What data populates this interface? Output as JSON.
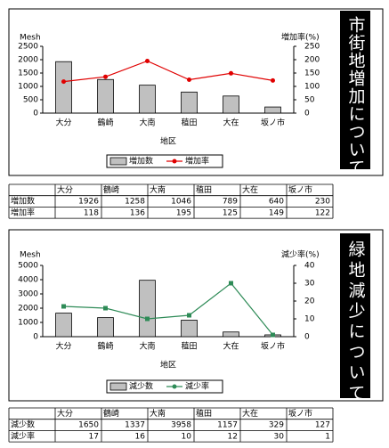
{
  "chart_data": [
    {
      "type": "bar",
      "title": "市街地増加について",
      "y_label": "Mesh",
      "y2_label": "増加率(%)",
      "x_label": "地区",
      "categories": [
        "大分",
        "鶴崎",
        "大南",
        "稙田",
        "大在",
        "坂ノ市"
      ],
      "series": [
        {
          "name": "増加数",
          "color": "#c0c0c0",
          "values": [
            1926,
            1258,
            1046,
            789,
            640,
            230
          ]
        },
        {
          "name": "増加率",
          "color": "#e00000",
          "type": "line",
          "marker": "circle",
          "axis": "y2",
          "values": [
            118,
            136,
            195,
            125,
            149,
            122
          ]
        }
      ],
      "ylim": [
        0,
        2500
      ],
      "yticks": [
        0,
        500,
        1000,
        1500,
        2000,
        2500
      ],
      "y2lim": [
        0,
        250
      ],
      "y2ticks": [
        0,
        50,
        100,
        150,
        200,
        250
      ],
      "legend": "bottom"
    },
    {
      "type": "bar",
      "title": "緑地減少について",
      "y_label": "Mesh",
      "y2_label": "減少率(%)",
      "x_label": "地区",
      "categories": [
        "大分",
        "鶴崎",
        "大南",
        "稙田",
        "大在",
        "坂ノ市"
      ],
      "series": [
        {
          "name": "減少数",
          "color": "#c0c0c0",
          "values": [
            1650,
            1337,
            3958,
            1157,
            329,
            127
          ]
        },
        {
          "name": "減少率",
          "color": "#2e8b57",
          "type": "line",
          "marker": "square",
          "axis": "y2",
          "values": [
            17,
            16,
            10,
            12,
            30,
            1
          ]
        }
      ],
      "ylim": [
        0,
        5000
      ],
      "yticks": [
        0,
        1000,
        2000,
        3000,
        4000,
        5000
      ],
      "y2lim": [
        0,
        40
      ],
      "y2ticks": [
        0,
        10,
        20,
        30,
        40
      ],
      "legend": "bottom"
    }
  ]
}
